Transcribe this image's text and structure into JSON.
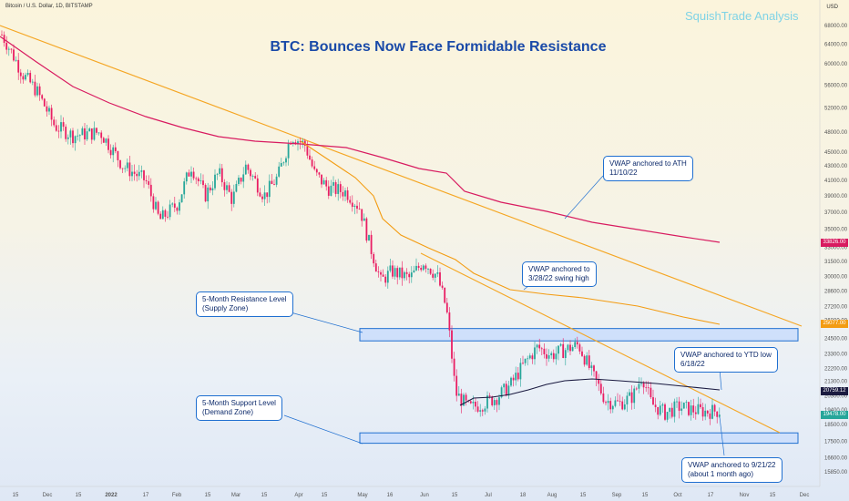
{
  "header": {
    "symbol": "Bitcoin / U.S. Dollar, 1D, BITSTAMP",
    "brand": "SquishTrade Analysis",
    "title": "BTC: Bounces Now Face Formidable Resistance",
    "currency": "USD"
  },
  "annotations": {
    "vwap_ath": [
      "VWAP anchored to ATH",
      "11/10/22"
    ],
    "vwap_swing": [
      "VWAP anchored to",
      "3/28/22 swing high"
    ],
    "resistance": [
      "5-Month Resistance Level",
      "(Supply Zone)"
    ],
    "support": [
      "5-Month Support Level",
      "(Demand Zone)"
    ],
    "vwap_ytd": [
      "VWAP anchored to YTD low",
      "6/18/22"
    ],
    "vwap_sep": [
      "VWAP anchored to 9/21/22",
      "(about 1 month ago)"
    ]
  },
  "price_tags": {
    "ath_vwap": "33826.00",
    "swing_vwap": "25077.00",
    "ytd_vwap": "20759.12",
    "last": "19478.00"
  },
  "colors": {
    "up": "#26a69a",
    "down": "#e91e63",
    "ath_vwap": "#d81b60",
    "swing_vwap": "#f39c12",
    "ytd_vwap": "#1a1a40",
    "trendline": "#f5a623",
    "zone_fill": "#cfe0fb",
    "zone_border": "#1f6fd0",
    "title": "#1a4aa8"
  },
  "chart_data": {
    "type": "candlestick",
    "title": "BTC: Bounces Now Face Formidable Resistance",
    "y_scale": "log",
    "ylim": [
      15000,
      72000
    ],
    "y_ticks": [
      68000,
      64000,
      60000,
      56000,
      52000,
      48000,
      45000,
      43000,
      41000,
      39000,
      37000,
      35000,
      33000,
      31500,
      30000,
      28600,
      27200,
      26000,
      24500,
      23300,
      22200,
      21300,
      20300,
      19400,
      18500,
      17500,
      16600,
      15850
    ],
    "x_ticks": [
      "15",
      "Dec",
      "15",
      "2022",
      "17",
      "Feb",
      "15",
      "Mar",
      "15",
      "Apr",
      "15",
      "May",
      "16",
      "Jun",
      "15",
      "Jul",
      "18",
      "Aug",
      "15",
      "Sep",
      "15",
      "Oct",
      "17",
      "Nov",
      "15",
      "Dec"
    ],
    "series": [
      {
        "name": "VWAP anchored to ATH 11/10/22",
        "ends_at": 33826
      },
      {
        "name": "VWAP anchored to 3/28/22 swing high",
        "ends_at": 25077
      },
      {
        "name": "VWAP anchored to YTD low 6/18/22",
        "ends_at": 20759.12
      }
    ],
    "zones": [
      {
        "name": "5-Month Resistance Level (Supply Zone)",
        "low": 24300,
        "high": 25300
      },
      {
        "name": "5-Month Support Level (Demand Zone)",
        "low": 17400,
        "high": 18000
      }
    ],
    "last_price": 19478
  }
}
